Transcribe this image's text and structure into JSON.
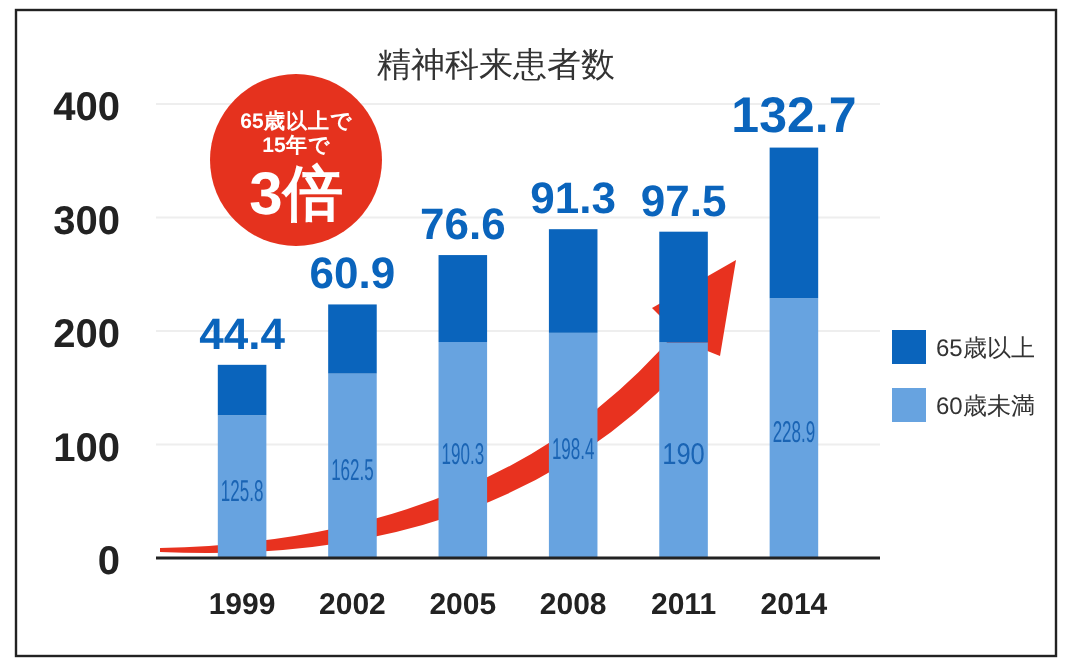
{
  "chart_data": {
    "type": "bar",
    "title": "精神科来患者数",
    "categories": [
      "1999",
      "2002",
      "2005",
      "2008",
      "2011",
      "2014"
    ],
    "stacked": true,
    "series": [
      {
        "name": "60歳未満",
        "color": "#67a3e0",
        "values": [
          125.8,
          162.5,
          190.3,
          198.4,
          190,
          228.9
        ]
      },
      {
        "name": "65歳以上",
        "color": "#0a64bc",
        "values": [
          44.4,
          60.9,
          76.6,
          91.3,
          97.5,
          132.7
        ]
      }
    ],
    "ylim": [
      0,
      400
    ],
    "yticks": [
      0,
      100,
      200,
      300,
      400
    ],
    "grid": "y",
    "legend": "right",
    "data_labels": true,
    "annotations": [
      "65歳以上で",
      "15年で",
      "3倍"
    ]
  }
}
